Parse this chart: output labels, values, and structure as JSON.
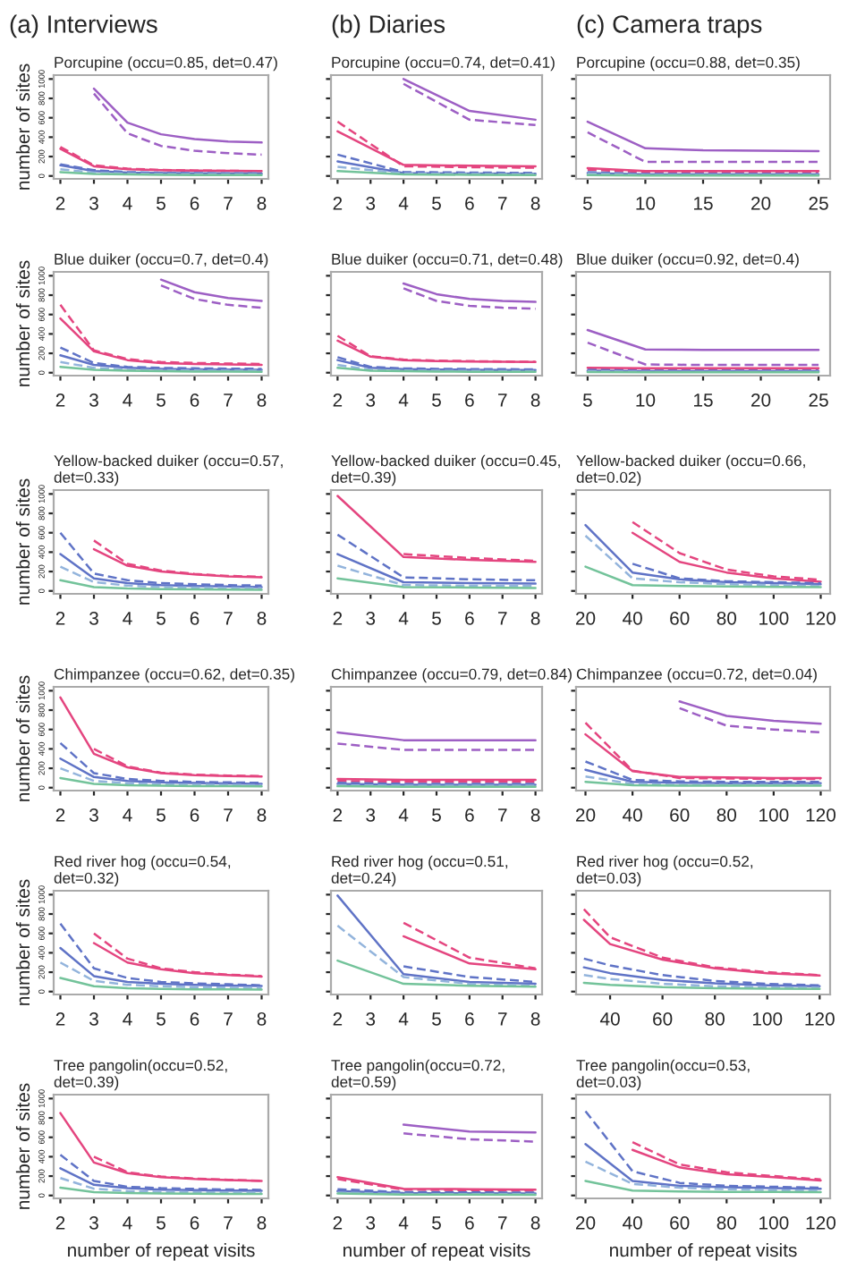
{
  "chart_data": [
    {
      "type": "line",
      "title": "Porcupine (occu=0.85, det=0.47)",
      "annotations": [
        "(a) Interviews"
      ],
      "ylabel": "number of sites",
      "x": [
        2,
        3,
        4,
        5,
        6,
        7,
        8
      ],
      "xlim": [
        1.8,
        8.2
      ],
      "xticks": [
        2,
        3,
        4,
        5,
        6,
        7,
        8
      ],
      "ylim": [
        -30,
        1040
      ],
      "yticks": [
        0,
        200,
        400,
        600,
        800,
        1000
      ],
      "series": [
        {
          "color": "#9d5fc4",
          "line_style": "solid",
          "values": [
            null,
            900,
            550,
            430,
            380,
            355,
            345
          ]
        },
        {
          "color": "#9d5fc4",
          "line_style": "dashed",
          "values": [
            null,
            850,
            440,
            310,
            260,
            235,
            220
          ]
        },
        {
          "color": "#e4457f",
          "line_style": "solid",
          "values": [
            280,
            100,
            70,
            60,
            55,
            52,
            50
          ]
        },
        {
          "color": "#e4457f",
          "line_style": "dashed",
          "values": [
            300,
            110,
            75,
            62,
            56,
            53,
            50
          ]
        },
        {
          "color": "#5f73c6",
          "line_style": "solid",
          "values": [
            110,
            50,
            35,
            30,
            28,
            26,
            25
          ]
        },
        {
          "color": "#5f73c6",
          "line_style": "dashed",
          "values": [
            120,
            60,
            40,
            33,
            30,
            28,
            27
          ]
        },
        {
          "color": "#93b4dc",
          "line_style": "dashed",
          "values": [
            70,
            35,
            25,
            20,
            18,
            17,
            16
          ]
        },
        {
          "color": "#73c39a",
          "line_style": "solid",
          "values": [
            40,
            20,
            15,
            12,
            10,
            10,
            10
          ]
        }
      ]
    },
    {
      "type": "line",
      "title": "Porcupine (occu=0.74, det=0.41)",
      "annotations": [
        "(b) Diaries"
      ],
      "x": [
        2,
        4,
        6,
        8
      ],
      "xlim": [
        1.8,
        8.2
      ],
      "xticks": [
        2,
        3,
        4,
        5,
        6,
        7,
        8
      ],
      "ylim": [
        -30,
        1040
      ],
      "yticks": [
        0,
        200,
        400,
        600,
        800,
        1000
      ],
      "tick_labels": "x",
      "series": [
        {
          "color": "#9d5fc4",
          "line_style": "solid",
          "values": [
            null,
            1000,
            670,
            580
          ]
        },
        {
          "color": "#9d5fc4",
          "line_style": "dashed",
          "values": [
            null,
            950,
            580,
            525
          ]
        },
        {
          "color": "#e4457f",
          "line_style": "solid",
          "values": [
            460,
            115,
            105,
            100
          ]
        },
        {
          "color": "#e4457f",
          "line_style": "dashed",
          "values": [
            560,
            100,
            90,
            85
          ]
        },
        {
          "color": "#5f73c6",
          "line_style": "solid",
          "values": [
            150,
            30,
            25,
            22
          ]
        },
        {
          "color": "#5f73c6",
          "line_style": "dashed",
          "values": [
            220,
            40,
            35,
            32
          ]
        },
        {
          "color": "#93b4dc",
          "line_style": "dashed",
          "values": [
            95,
            25,
            20,
            18
          ]
        },
        {
          "color": "#73c39a",
          "line_style": "solid",
          "values": [
            50,
            15,
            12,
            10
          ]
        }
      ]
    },
    {
      "type": "line",
      "title": "Porcupine (occu=0.88, det=0.35)",
      "annotations": [
        "(c) Camera traps"
      ],
      "x": [
        5,
        10,
        15,
        20,
        25
      ],
      "xlim": [
        4,
        26
      ],
      "xticks": [
        5,
        10,
        15,
        20,
        25
      ],
      "ylim": [
        -30,
        1040
      ],
      "yticks": [
        0,
        200,
        400,
        600,
        800,
        1000
      ],
      "tick_labels": "x",
      "series": [
        {
          "color": "#9d5fc4",
          "line_style": "solid",
          "values": [
            560,
            285,
            265,
            260,
            255
          ]
        },
        {
          "color": "#9d5fc4",
          "line_style": "dashed",
          "values": [
            450,
            145,
            145,
            145,
            145
          ]
        },
        {
          "color": "#e4457f",
          "line_style": "solid",
          "values": [
            80,
            50,
            50,
            50,
            50
          ]
        },
        {
          "color": "#e4457f",
          "line_style": "dashed",
          "values": [
            65,
            40,
            40,
            40,
            40
          ]
        },
        {
          "color": "#5f73c6",
          "line_style": "solid",
          "values": [
            30,
            15,
            15,
            15,
            15
          ]
        },
        {
          "color": "#5f73c6",
          "line_style": "dashed",
          "values": [
            40,
            20,
            20,
            20,
            20
          ]
        },
        {
          "color": "#93b4dc",
          "line_style": "dashed",
          "values": [
            25,
            10,
            10,
            10,
            10
          ]
        },
        {
          "color": "#73c39a",
          "line_style": "solid",
          "values": [
            10,
            5,
            5,
            5,
            5
          ]
        }
      ]
    },
    {
      "type": "line",
      "title": "Blue duiker (occu=0.7, det=0.4)",
      "ylabel": "number of sites",
      "x": [
        2,
        3,
        4,
        5,
        6,
        7,
        8
      ],
      "xlim": [
        1.8,
        8.2
      ],
      "xticks": [
        2,
        3,
        4,
        5,
        6,
        7,
        8
      ],
      "ylim": [
        -30,
        1040
      ],
      "yticks": [
        0,
        200,
        400,
        600,
        800,
        1000
      ],
      "series": [
        {
          "color": "#9d5fc4",
          "line_style": "solid",
          "values": [
            null,
            null,
            null,
            960,
            830,
            770,
            740
          ]
        },
        {
          "color": "#9d5fc4",
          "line_style": "dashed",
          "values": [
            null,
            null,
            null,
            900,
            760,
            700,
            670
          ]
        },
        {
          "color": "#e4457f",
          "line_style": "solid",
          "values": [
            560,
            220,
            130,
            100,
            90,
            85,
            80
          ]
        },
        {
          "color": "#e4457f",
          "line_style": "dashed",
          "values": [
            700,
            230,
            140,
            110,
            100,
            95,
            90
          ]
        },
        {
          "color": "#5f73c6",
          "line_style": "solid",
          "values": [
            180,
            80,
            50,
            40,
            35,
            32,
            30
          ]
        },
        {
          "color": "#5f73c6",
          "line_style": "dashed",
          "values": [
            260,
            100,
            60,
            50,
            45,
            42,
            40
          ]
        },
        {
          "color": "#93b4dc",
          "line_style": "dashed",
          "values": [
            110,
            50,
            30,
            25,
            22,
            20,
            20
          ]
        },
        {
          "color": "#73c39a",
          "line_style": "solid",
          "values": [
            60,
            30,
            20,
            15,
            12,
            12,
            10
          ]
        }
      ]
    },
    {
      "type": "line",
      "title": "Blue duiker (occu=0.71, det=0.48)",
      "x": [
        2,
        3,
        4,
        5,
        6,
        7,
        8
      ],
      "xlim": [
        1.8,
        8.2
      ],
      "xticks": [
        2,
        3,
        4,
        5,
        6,
        7,
        8
      ],
      "ylim": [
        -30,
        1040
      ],
      "yticks": [
        0,
        200,
        400,
        600,
        800,
        1000
      ],
      "tick_labels": "x",
      "series": [
        {
          "color": "#9d5fc4",
          "line_style": "solid",
          "values": [
            null,
            null,
            920,
            810,
            760,
            740,
            730
          ]
        },
        {
          "color": "#9d5fc4",
          "line_style": "dashed",
          "values": [
            null,
            null,
            870,
            740,
            690,
            670,
            660
          ]
        },
        {
          "color": "#e4457f",
          "line_style": "solid",
          "values": [
            330,
            165,
            130,
            120,
            115,
            112,
            110
          ]
        },
        {
          "color": "#e4457f",
          "line_style": "dashed",
          "values": [
            380,
            170,
            135,
            125,
            120,
            115,
            112
          ]
        },
        {
          "color": "#5f73c6",
          "line_style": "solid",
          "values": [
            130,
            50,
            38,
            33,
            30,
            28,
            27
          ]
        },
        {
          "color": "#5f73c6",
          "line_style": "dashed",
          "values": [
            160,
            60,
            45,
            40,
            38,
            36,
            35
          ]
        },
        {
          "color": "#93b4dc",
          "line_style": "dashed",
          "values": [
            80,
            30,
            22,
            20,
            18,
            17,
            16
          ]
        },
        {
          "color": "#73c39a",
          "line_style": "solid",
          "values": [
            50,
            20,
            15,
            12,
            10,
            10,
            9
          ]
        }
      ]
    },
    {
      "type": "line",
      "title": "Blue duiker (occu=0.92, det=0.4)",
      "x": [
        5,
        10,
        15,
        20,
        25
      ],
      "xlim": [
        4,
        26
      ],
      "xticks": [
        5,
        10,
        15,
        20,
        25
      ],
      "ylim": [
        -30,
        1040
      ],
      "yticks": [
        0,
        200,
        400,
        600,
        800,
        1000
      ],
      "tick_labels": "x",
      "series": [
        {
          "color": "#9d5fc4",
          "line_style": "solid",
          "values": [
            440,
            240,
            235,
            235,
            235
          ]
        },
        {
          "color": "#9d5fc4",
          "line_style": "dashed",
          "values": [
            310,
            85,
            80,
            80,
            80
          ]
        },
        {
          "color": "#e4457f",
          "line_style": "solid",
          "values": [
            50,
            45,
            45,
            45,
            45
          ]
        },
        {
          "color": "#e4457f",
          "line_style": "dashed",
          "values": [
            40,
            35,
            35,
            35,
            35
          ]
        },
        {
          "color": "#5f73c6",
          "line_style": "solid",
          "values": [
            20,
            15,
            15,
            15,
            15
          ]
        },
        {
          "color": "#5f73c6",
          "line_style": "dashed",
          "values": [
            30,
            20,
            20,
            20,
            20
          ]
        },
        {
          "color": "#93b4dc",
          "line_style": "dashed",
          "values": [
            15,
            10,
            10,
            10,
            10
          ]
        },
        {
          "color": "#73c39a",
          "line_style": "solid",
          "values": [
            8,
            5,
            5,
            5,
            5
          ]
        }
      ]
    },
    {
      "type": "line",
      "title": "Yellow-backed duiker (occu=0.57,\ndet=0.33)",
      "ylabel": "number of sites",
      "x": [
        2,
        3,
        4,
        5,
        6,
        7,
        8
      ],
      "xlim": [
        1.8,
        8.2
      ],
      "xticks": [
        2,
        3,
        4,
        5,
        6,
        7,
        8
      ],
      "ylim": [
        -30,
        1040
      ],
      "yticks": [
        0,
        200,
        400,
        600,
        800,
        1000
      ],
      "series": [
        {
          "color": "#e4457f",
          "line_style": "solid",
          "values": [
            null,
            430,
            260,
            200,
            170,
            150,
            140
          ]
        },
        {
          "color": "#e4457f",
          "line_style": "dashed",
          "values": [
            null,
            520,
            280,
            210,
            175,
            155,
            145
          ]
        },
        {
          "color": "#5f73c6",
          "line_style": "solid",
          "values": [
            380,
            130,
            80,
            60,
            50,
            45,
            40
          ]
        },
        {
          "color": "#5f73c6",
          "line_style": "dashed",
          "values": [
            600,
            180,
            110,
            80,
            70,
            60,
            55
          ]
        },
        {
          "color": "#93b4dc",
          "line_style": "dashed",
          "values": [
            250,
            90,
            55,
            40,
            35,
            30,
            28
          ]
        },
        {
          "color": "#73c39a",
          "line_style": "solid",
          "values": [
            110,
            40,
            25,
            18,
            15,
            13,
            12
          ]
        }
      ]
    },
    {
      "type": "line",
      "title": "Yellow-backed duiker (occu=0.45,\ndet=0.39)",
      "x": [
        2,
        4,
        6,
        8
      ],
      "xlim": [
        1.8,
        8.2
      ],
      "xticks": [
        2,
        3,
        4,
        5,
        6,
        7,
        8
      ],
      "ylim": [
        -30,
        1040
      ],
      "yticks": [
        0,
        200,
        400,
        600,
        800,
        1000
      ],
      "tick_labels": "x",
      "series": [
        {
          "color": "#e4457f",
          "line_style": "solid",
          "values": [
            980,
            350,
            320,
            300
          ]
        },
        {
          "color": "#e4457f",
          "line_style": "dashed",
          "values": [
            null,
            380,
            340,
            310
          ]
        },
        {
          "color": "#5f73c6",
          "line_style": "solid",
          "values": [
            380,
            90,
            80,
            75
          ]
        },
        {
          "color": "#5f73c6",
          "line_style": "dashed",
          "values": [
            580,
            140,
            120,
            110
          ]
        },
        {
          "color": "#93b4dc",
          "line_style": "dashed",
          "values": [
            260,
            60,
            55,
            50
          ]
        },
        {
          "color": "#73c39a",
          "line_style": "solid",
          "values": [
            130,
            40,
            35,
            30
          ]
        }
      ]
    },
    {
      "type": "line",
      "title": "Yellow-backed duiker (occu=0.66,\ndet=0.02)",
      "x": [
        20,
        40,
        60,
        80,
        100,
        120
      ],
      "xlim": [
        16,
        124
      ],
      "xticks": [
        20,
        40,
        60,
        80,
        100,
        120
      ],
      "ylim": [
        -30,
        1040
      ],
      "yticks": [
        0,
        200,
        400,
        600,
        800,
        1000
      ],
      "tick_labels": "x",
      "series": [
        {
          "color": "#e4457f",
          "line_style": "solid",
          "values": [
            null,
            600,
            300,
            190,
            130,
            95
          ]
        },
        {
          "color": "#e4457f",
          "line_style": "dashed",
          "values": [
            null,
            710,
            390,
            220,
            150,
            115
          ]
        },
        {
          "color": "#5f73c6",
          "line_style": "solid",
          "values": [
            680,
            190,
            120,
            90,
            80,
            70
          ]
        },
        {
          "color": "#5f73c6",
          "line_style": "dashed",
          "values": [
            null,
            280,
            130,
            100,
            90,
            80
          ]
        },
        {
          "color": "#93b4dc",
          "line_style": "dashed",
          "values": [
            570,
            130,
            90,
            70,
            60,
            50
          ]
        },
        {
          "color": "#73c39a",
          "line_style": "solid",
          "values": [
            250,
            60,
            50,
            45,
            42,
            40
          ]
        }
      ]
    },
    {
      "type": "line",
      "title": "Chimpanzee (occu=0.62, det=0.35)",
      "ylabel": "number of sites",
      "x": [
        2,
        3,
        4,
        5,
        6,
        7,
        8
      ],
      "xlim": [
        1.8,
        8.2
      ],
      "xticks": [
        2,
        3,
        4,
        5,
        6,
        7,
        8
      ],
      "ylim": [
        -30,
        1040
      ],
      "yticks": [
        0,
        200,
        400,
        600,
        800,
        1000
      ],
      "series": [
        {
          "color": "#e4457f",
          "line_style": "solid",
          "values": [
            930,
            350,
            210,
            150,
            130,
            120,
            115
          ]
        },
        {
          "color": "#e4457f",
          "line_style": "dashed",
          "values": [
            null,
            400,
            220,
            155,
            135,
            125,
            120
          ]
        },
        {
          "color": "#5f73c6",
          "line_style": "solid",
          "values": [
            300,
            110,
            70,
            55,
            48,
            44,
            40
          ]
        },
        {
          "color": "#5f73c6",
          "line_style": "dashed",
          "values": [
            460,
            150,
            90,
            70,
            60,
            55,
            50
          ]
        },
        {
          "color": "#93b4dc",
          "line_style": "dashed",
          "values": [
            200,
            70,
            45,
            35,
            30,
            28,
            25
          ]
        },
        {
          "color": "#73c39a",
          "line_style": "solid",
          "values": [
            100,
            40,
            25,
            20,
            17,
            15,
            14
          ]
        }
      ]
    },
    {
      "type": "line",
      "title": "Chimpanzee (occu=0.79, det=0.84)",
      "x": [
        2,
        4,
        6,
        8
      ],
      "xlim": [
        1.8,
        8.2
      ],
      "xticks": [
        2,
        3,
        4,
        5,
        6,
        7,
        8
      ],
      "ylim": [
        -30,
        1040
      ],
      "yticks": [
        0,
        200,
        400,
        600,
        800,
        1000
      ],
      "tick_labels": "x",
      "series": [
        {
          "color": "#9d5fc4",
          "line_style": "solid",
          "values": [
            570,
            490,
            490,
            490
          ]
        },
        {
          "color": "#9d5fc4",
          "line_style": "dashed",
          "values": [
            455,
            390,
            390,
            390
          ]
        },
        {
          "color": "#e4457f",
          "line_style": "solid",
          "values": [
            90,
            80,
            80,
            80
          ]
        },
        {
          "color": "#e4457f",
          "line_style": "dashed",
          "values": [
            70,
            60,
            60,
            60
          ]
        },
        {
          "color": "#5f73c6",
          "line_style": "solid",
          "values": [
            40,
            30,
            30,
            30
          ]
        },
        {
          "color": "#5f73c6",
          "line_style": "dashed",
          "values": [
            50,
            40,
            40,
            40
          ]
        },
        {
          "color": "#93b4dc",
          "line_style": "dashed",
          "values": [
            25,
            20,
            20,
            20
          ]
        },
        {
          "color": "#73c39a",
          "line_style": "solid",
          "values": [
            15,
            10,
            10,
            10
          ]
        }
      ]
    },
    {
      "type": "line",
      "title": "Chimpanzee (occu=0.72, det=0.04)",
      "x": [
        20,
        40,
        60,
        80,
        100,
        120
      ],
      "xlim": [
        16,
        124
      ],
      "xticks": [
        20,
        40,
        60,
        80,
        100,
        120
      ],
      "ylim": [
        -30,
        1040
      ],
      "yticks": [
        0,
        200,
        400,
        600,
        800,
        1000
      ],
      "tick_labels": "x",
      "series": [
        {
          "color": "#9d5fc4",
          "line_style": "solid",
          "values": [
            null,
            null,
            890,
            740,
            690,
            660
          ]
        },
        {
          "color": "#9d5fc4",
          "line_style": "dashed",
          "values": [
            null,
            null,
            820,
            640,
            600,
            570
          ]
        },
        {
          "color": "#e4457f",
          "line_style": "solid",
          "values": [
            550,
            170,
            110,
            105,
            100,
            100
          ]
        },
        {
          "color": "#e4457f",
          "line_style": "dashed",
          "values": [
            670,
            175,
            100,
            95,
            90,
            90
          ]
        },
        {
          "color": "#5f73c6",
          "line_style": "solid",
          "values": [
            185,
            60,
            50,
            45,
            45,
            45
          ]
        },
        {
          "color": "#5f73c6",
          "line_style": "dashed",
          "values": [
            270,
            80,
            65,
            60,
            60,
            60
          ]
        },
        {
          "color": "#93b4dc",
          "line_style": "dashed",
          "values": [
            115,
            40,
            30,
            30,
            30,
            30
          ]
        },
        {
          "color": "#73c39a",
          "line_style": "solid",
          "values": [
            60,
            25,
            20,
            20,
            20,
            20
          ]
        }
      ]
    },
    {
      "type": "line",
      "title": "Red river hog (occu=0.54,\ndet=0.32)",
      "ylabel": "number of sites",
      "x": [
        2,
        3,
        4,
        5,
        6,
        7,
        8
      ],
      "xlim": [
        1.8,
        8.2
      ],
      "xticks": [
        2,
        3,
        4,
        5,
        6,
        7,
        8
      ],
      "ylim": [
        -30,
        1040
      ],
      "yticks": [
        0,
        200,
        400,
        600,
        800,
        1000
      ],
      "series": [
        {
          "color": "#e4457f",
          "line_style": "solid",
          "values": [
            null,
            500,
            300,
            230,
            190,
            170,
            155
          ]
        },
        {
          "color": "#e4457f",
          "line_style": "dashed",
          "values": [
            null,
            600,
            340,
            240,
            200,
            175,
            160
          ]
        },
        {
          "color": "#5f73c6",
          "line_style": "solid",
          "values": [
            450,
            160,
            100,
            80,
            70,
            62,
            58
          ]
        },
        {
          "color": "#5f73c6",
          "line_style": "dashed",
          "values": [
            700,
            240,
            140,
            100,
            85,
            75,
            65
          ]
        },
        {
          "color": "#93b4dc",
          "line_style": "dashed",
          "values": [
            300,
            110,
            70,
            55,
            45,
            40,
            38
          ]
        },
        {
          "color": "#73c39a",
          "line_style": "solid",
          "values": [
            140,
            55,
            35,
            28,
            24,
            22,
            20
          ]
        }
      ]
    },
    {
      "type": "line",
      "title": "Red river hog (occu=0.51,\ndet=0.24)",
      "x": [
        2,
        4,
        6,
        8
      ],
      "xlim": [
        1.8,
        8.2
      ],
      "xticks": [
        2,
        3,
        4,
        5,
        6,
        7,
        8
      ],
      "ylim": [
        -30,
        1040
      ],
      "yticks": [
        0,
        200,
        400,
        600,
        800,
        1000
      ],
      "tick_labels": "x",
      "series": [
        {
          "color": "#e4457f",
          "line_style": "solid",
          "values": [
            null,
            570,
            290,
            230
          ]
        },
        {
          "color": "#e4457f",
          "line_style": "dashed",
          "values": [
            null,
            710,
            350,
            240
          ]
        },
        {
          "color": "#5f73c6",
          "line_style": "solid",
          "values": [
            990,
            180,
            100,
            80
          ]
        },
        {
          "color": "#5f73c6",
          "line_style": "dashed",
          "values": [
            null,
            260,
            150,
            100
          ]
        },
        {
          "color": "#93b4dc",
          "line_style": "dashed",
          "values": [
            680,
            150,
            80,
            60
          ]
        },
        {
          "color": "#73c39a",
          "line_style": "solid",
          "values": [
            320,
            80,
            60,
            50
          ]
        }
      ]
    },
    {
      "type": "line",
      "title": "Red river hog (occu=0.52,\ndet=0.03)",
      "x": [
        30,
        40,
        60,
        80,
        100,
        120
      ],
      "xlim": [
        27,
        124
      ],
      "xticks": [
        40,
        60,
        80,
        100,
        120
      ],
      "ylim": [
        -30,
        1040
      ],
      "yticks": [
        0,
        200,
        400,
        600,
        800,
        1000
      ],
      "tick_labels": "x",
      "series": [
        {
          "color": "#e4457f",
          "line_style": "solid",
          "values": [
            740,
            490,
            330,
            240,
            190,
            165
          ]
        },
        {
          "color": "#e4457f",
          "line_style": "dashed",
          "values": [
            850,
            560,
            350,
            250,
            200,
            170
          ]
        },
        {
          "color": "#5f73c6",
          "line_style": "solid",
          "values": [
            250,
            190,
            120,
            85,
            65,
            55
          ]
        },
        {
          "color": "#5f73c6",
          "line_style": "dashed",
          "values": [
            340,
            270,
            170,
            110,
            80,
            65
          ]
        },
        {
          "color": "#93b4dc",
          "line_style": "dashed",
          "values": [
            170,
            130,
            80,
            55,
            45,
            40
          ]
        },
        {
          "color": "#73c39a",
          "line_style": "solid",
          "values": [
            90,
            70,
            45,
            35,
            30,
            28
          ]
        }
      ]
    },
    {
      "type": "line",
      "title": "Tree pangolin(occu=0.52,\ndet=0.39)",
      "ylabel": "number of sites",
      "xlabel": "number of repeat visits",
      "x": [
        2,
        3,
        4,
        5,
        6,
        7,
        8
      ],
      "xlim": [
        1.8,
        8.2
      ],
      "xticks": [
        2,
        3,
        4,
        5,
        6,
        7,
        8
      ],
      "ylim": [
        -30,
        1040
      ],
      "yticks": [
        0,
        200,
        400,
        600,
        800,
        1000
      ],
      "series": [
        {
          "color": "#e4457f",
          "line_style": "solid",
          "values": [
            850,
            340,
            230,
            190,
            170,
            160,
            150
          ]
        },
        {
          "color": "#e4457f",
          "line_style": "dashed",
          "values": [
            null,
            400,
            240,
            195,
            175,
            162,
            152
          ]
        },
        {
          "color": "#5f73c6",
          "line_style": "solid",
          "values": [
            280,
            110,
            75,
            60,
            55,
            50,
            48
          ]
        },
        {
          "color": "#5f73c6",
          "line_style": "dashed",
          "values": [
            420,
            150,
            90,
            75,
            68,
            62,
            58
          ]
        },
        {
          "color": "#93b4dc",
          "line_style": "dashed",
          "values": [
            180,
            70,
            45,
            38,
            34,
            32,
            30
          ]
        },
        {
          "color": "#73c39a",
          "line_style": "solid",
          "values": [
            80,
            35,
            25,
            20,
            18,
            17,
            16
          ]
        }
      ]
    },
    {
      "type": "line",
      "title": "Tree pangolin(occu=0.72,\ndet=0.59)",
      "xlabel": "number of repeat visits",
      "x": [
        2,
        4,
        6,
        8
      ],
      "xlim": [
        1.8,
        8.2
      ],
      "xticks": [
        2,
        3,
        4,
        5,
        6,
        7,
        8
      ],
      "ylim": [
        -30,
        1040
      ],
      "yticks": [
        0,
        200,
        400,
        600,
        800,
        1000
      ],
      "tick_labels": "x",
      "series": [
        {
          "color": "#9d5fc4",
          "line_style": "solid",
          "values": [
            null,
            730,
            660,
            650
          ]
        },
        {
          "color": "#9d5fc4",
          "line_style": "dashed",
          "values": [
            null,
            640,
            580,
            555
          ]
        },
        {
          "color": "#e4457f",
          "line_style": "solid",
          "values": [
            190,
            70,
            65,
            60
          ]
        },
        {
          "color": "#e4457f",
          "line_style": "dashed",
          "values": [
            170,
            60,
            55,
            50
          ]
        },
        {
          "color": "#5f73c6",
          "line_style": "solid",
          "values": [
            45,
            25,
            22,
            20
          ]
        },
        {
          "color": "#5f73c6",
          "line_style": "dashed",
          "values": [
            65,
            35,
            32,
            30
          ]
        },
        {
          "color": "#93b4dc",
          "line_style": "dashed",
          "values": [
            30,
            15,
            14,
            13
          ]
        },
        {
          "color": "#73c39a",
          "line_style": "solid",
          "values": [
            20,
            10,
            9,
            8
          ]
        }
      ]
    },
    {
      "type": "line",
      "title": "Tree pangolin(occu=0.53,\ndet=0.03)",
      "xlabel": "number of repeat visits",
      "x": [
        20,
        40,
        60,
        80,
        100,
        120
      ],
      "xlim": [
        16,
        124
      ],
      "xticks": [
        20,
        40,
        60,
        80,
        100,
        120
      ],
      "ylim": [
        -30,
        1040
      ],
      "yticks": [
        0,
        200,
        400,
        600,
        800,
        1000
      ],
      "tick_labels": "x",
      "series": [
        {
          "color": "#e4457f",
          "line_style": "solid",
          "values": [
            null,
            470,
            290,
            220,
            190,
            155
          ]
        },
        {
          "color": "#e4457f",
          "line_style": "dashed",
          "values": [
            null,
            550,
            320,
            240,
            200,
            165
          ]
        },
        {
          "color": "#5f73c6",
          "line_style": "solid",
          "values": [
            530,
            150,
            100,
            85,
            75,
            70
          ]
        },
        {
          "color": "#5f73c6",
          "line_style": "dashed",
          "values": [
            870,
            250,
            130,
            100,
            90,
            80
          ]
        },
        {
          "color": "#93b4dc",
          "line_style": "dashed",
          "values": [
            350,
            120,
            80,
            65,
            55,
            50
          ]
        },
        {
          "color": "#73c39a",
          "line_style": "solid",
          "values": [
            150,
            50,
            42,
            38,
            36,
            35
          ]
        }
      ]
    }
  ]
}
